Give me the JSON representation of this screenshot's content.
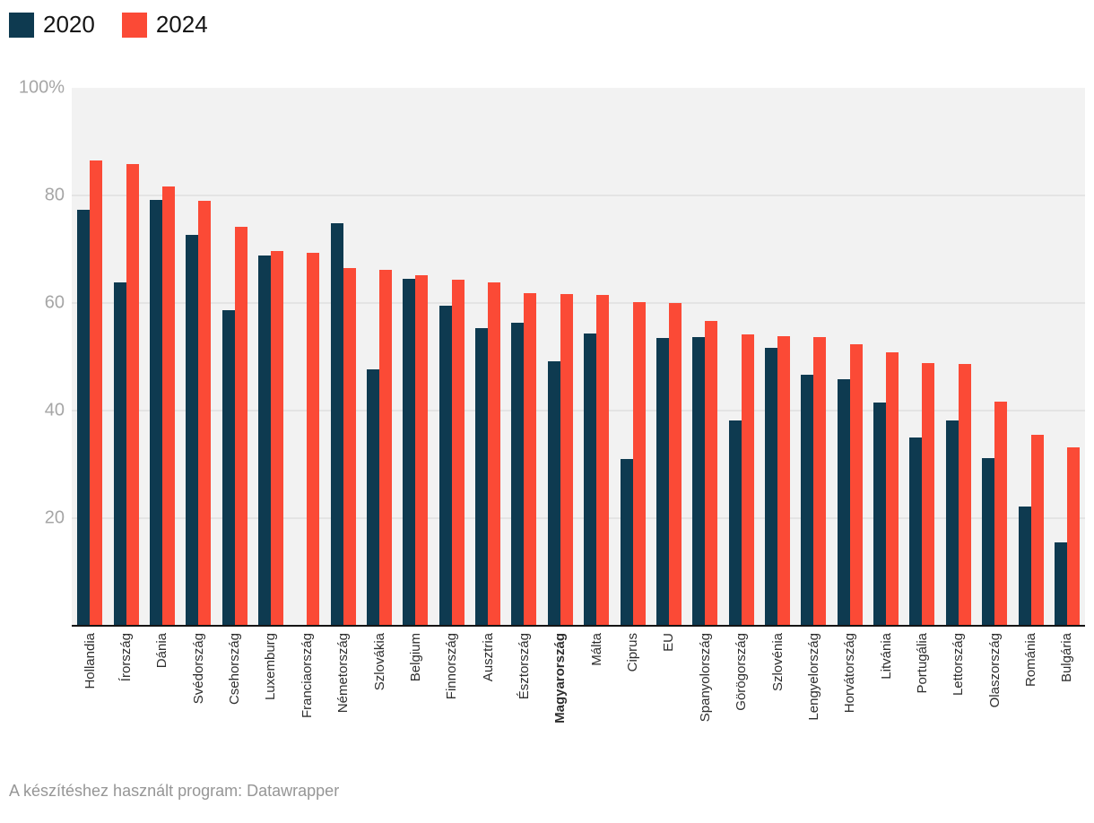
{
  "legend": {
    "items": [
      {
        "label": "2020",
        "color": "#0e3a50"
      },
      {
        "label": "2024",
        "color": "#fb4a36"
      }
    ]
  },
  "chart_data": {
    "type": "bar",
    "title": "",
    "xlabel": "",
    "ylabel": "",
    "ylim": [
      0,
      100
    ],
    "unit": "%",
    "grid": "horizontal",
    "legend_position": "top-left",
    "highlight_category": "Magyarország",
    "y_ticks": [
      {
        "label": "100%",
        "value": 100
      },
      {
        "label": "80",
        "value": 80
      },
      {
        "label": "60",
        "value": 60
      },
      {
        "label": "40",
        "value": 40
      },
      {
        "label": "20",
        "value": 20
      }
    ],
    "categories": [
      "Hollandia",
      "Írország",
      "Dánia",
      "Svédország",
      "Csehország",
      "Luxemburg",
      "Franciaország",
      "Németország",
      "Szlovákia",
      "Belgium",
      "Finnország",
      "Ausztria",
      "Észtország",
      "Magyarország",
      "Málta",
      "Ciprus",
      "EU",
      "Spanyolország",
      "Görögország",
      "Szlovénia",
      "Lengyelország",
      "Horvátország",
      "Litvánia",
      "Portugália",
      "Lettország",
      "Olaszország",
      "Románia",
      "Bulgária"
    ],
    "series": [
      {
        "name": "2020",
        "color": "#0e3a50",
        "values": [
          77.3,
          63.8,
          79.2,
          72.7,
          58.6,
          68.9,
          null,
          74.8,
          47.7,
          64.5,
          59.5,
          55.4,
          56.4,
          49.2,
          54.4,
          31.0,
          53.5,
          53.7,
          38.2,
          51.6,
          46.6,
          45.8,
          41.5,
          35.0,
          38.2,
          31.2,
          22.2,
          15.5
        ]
      },
      {
        "name": "2024",
        "color": "#fb4a36",
        "values": [
          86.5,
          85.9,
          81.7,
          79.0,
          74.2,
          69.6,
          69.3,
          66.5,
          66.2,
          65.2,
          64.3,
          63.9,
          61.9,
          61.6,
          61.5,
          60.1,
          60.0,
          56.6,
          54.1,
          53.9,
          53.7,
          52.3,
          50.8,
          48.9,
          48.7,
          41.7,
          35.5,
          33.2
        ]
      }
    ]
  },
  "colors": {
    "plot_background": "#f2f2f2",
    "gridline": "#e4e4e4",
    "axis_line": "#141414",
    "y_tick_text": "#a6a6a6",
    "x_tick_text": "#2e2e2e",
    "footer_text": "#969696"
  },
  "footer": {
    "text": "A készítéshez használt program: Datawrapper"
  }
}
